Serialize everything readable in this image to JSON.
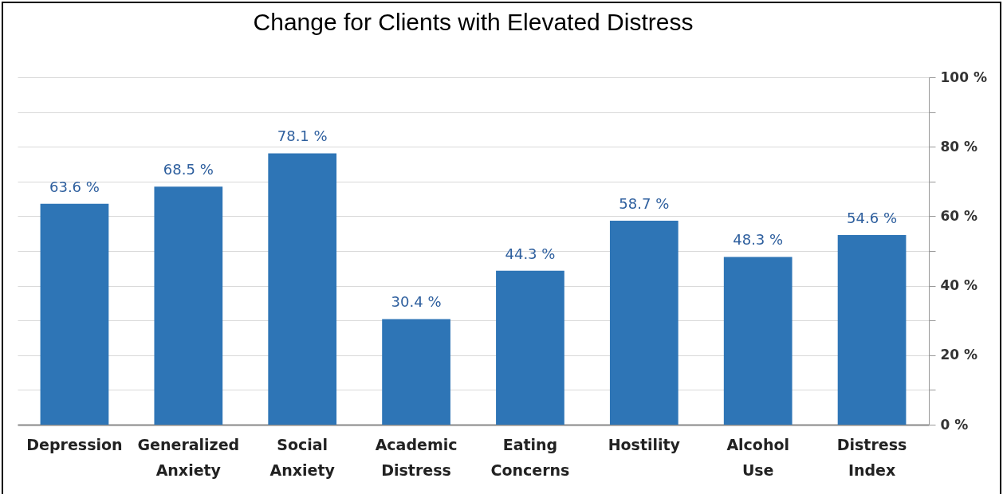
{
  "chart_data": {
    "type": "bar",
    "title": "Change for Clients with Elevated Distress",
    "categories": [
      "Depression",
      "Generalized Anxiety",
      "Social Anxiety",
      "Academic Distress",
      "Eating Concerns",
      "Hostility",
      "Alcohol Use",
      "Distress Index"
    ],
    "values": [
      63.6,
      68.5,
      78.1,
      30.4,
      44.3,
      58.7,
      48.3,
      54.6
    ],
    "value_labels": [
      "63.6 %",
      "68.5 %",
      "78.1 %",
      "30.4 %",
      "44.3 %",
      "58.7 %",
      "48.3 %",
      "54.6 %"
    ],
    "color": "#2e75b6",
    "ylim": [
      0,
      100
    ],
    "yticks": [
      {
        "value": 0,
        "label": "0 %"
      },
      {
        "value": 10,
        "label": null
      },
      {
        "value": 20,
        "label": "20 %"
      },
      {
        "value": 30,
        "label": null
      },
      {
        "value": 40,
        "label": "40 %"
      },
      {
        "value": 50,
        "label": null
      },
      {
        "value": 60,
        "label": "60 %"
      },
      {
        "value": 70,
        "label": null
      },
      {
        "value": 80,
        "label": "80 %"
      },
      {
        "value": 90,
        "label": null
      },
      {
        "value": 100,
        "label": "100 %"
      }
    ],
    "grid": "y"
  }
}
